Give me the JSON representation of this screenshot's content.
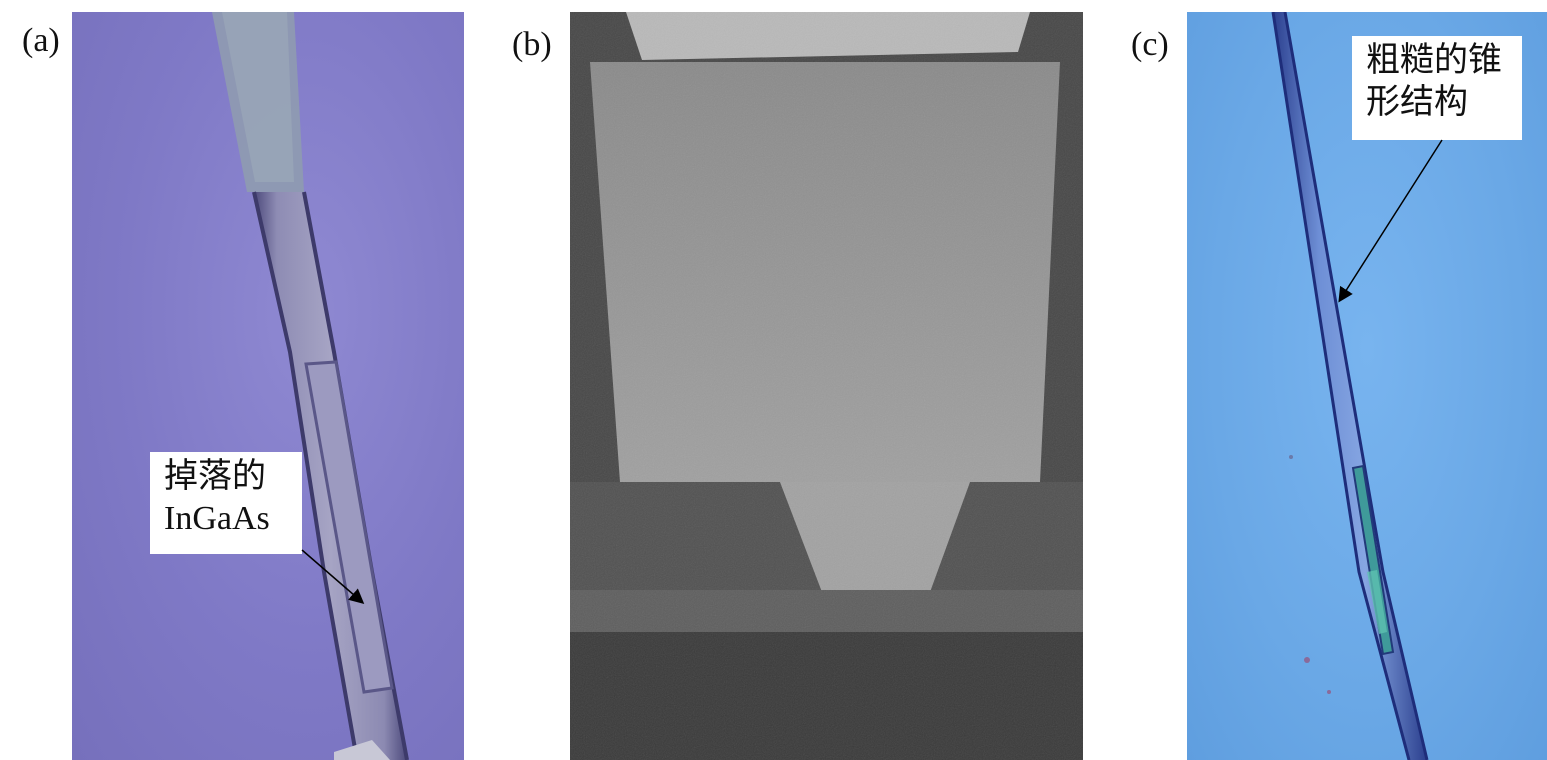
{
  "panels": {
    "a": {
      "label": "(a)",
      "callout_line1": "掉落的",
      "callout_line2": "InGaAs"
    },
    "b": {
      "label": "(b)"
    },
    "c": {
      "label": "(c)",
      "callout_line1": "粗糙的锥",
      "callout_line2": "形结构"
    }
  },
  "colors": {
    "panel_a_background": "#7f79c6",
    "panel_b_background": "#4a4a4a",
    "panel_c_background": "#6aa8e6",
    "callout_background": "#ffffff",
    "arrow": "#000000"
  }
}
